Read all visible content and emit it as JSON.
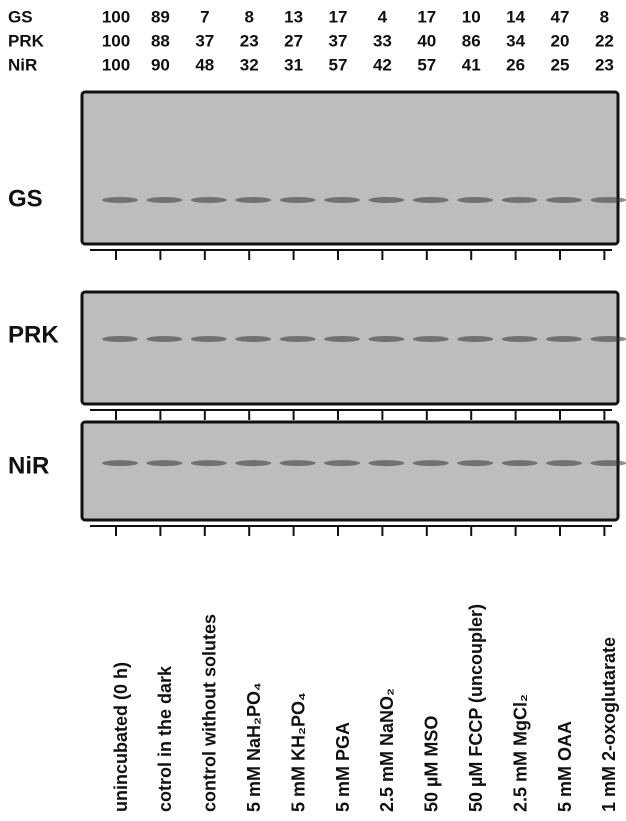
{
  "table": {
    "rows": [
      {
        "label": "GS",
        "values": [
          100,
          89,
          7,
          8,
          13,
          17,
          4,
          17,
          10,
          14,
          47,
          8
        ]
      },
      {
        "label": "PRK",
        "values": [
          100,
          88,
          37,
          23,
          27,
          37,
          33,
          40,
          86,
          34,
          20,
          22
        ]
      },
      {
        "label": "NiR",
        "values": [
          100,
          90,
          48,
          32,
          31,
          57,
          42,
          57,
          41,
          26,
          25,
          23
        ]
      }
    ]
  },
  "panels": [
    {
      "label": "GS"
    },
    {
      "label": "PRK"
    },
    {
      "label": "NiR"
    }
  ],
  "lanes": [
    "unincubated (0 h)",
    "cotrol in the dark",
    "control without solutes",
    "5 mM NaH₂PO₄",
    "5 mM KH₂PO₄",
    "5 mM PGA",
    "2.5 mM NaNO₂",
    "50 µM MSO",
    "50 µM FCCP (uncoupler)",
    "2.5 mM MgCl₂",
    "5 mM OAA",
    "1 mM 2-oxoglutarate"
  ]
}
